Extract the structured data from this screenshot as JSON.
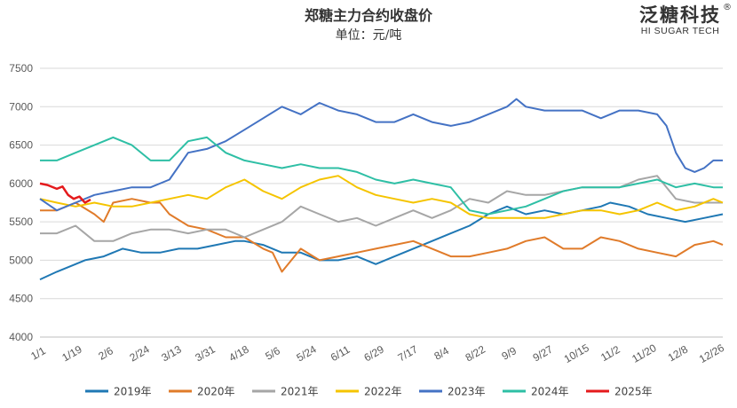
{
  "brand": {
    "name_cn": "泛糖科技",
    "name_en": "HI SUGAR TECH",
    "reg": "®"
  },
  "chart_data": {
    "type": "line",
    "title": "郑糖主力合约收盘价",
    "subtitle": "单位：元/吨",
    "xlabel": "",
    "ylabel": "",
    "ylim": [
      4000,
      7500
    ],
    "yticks": [
      4000,
      4500,
      5000,
      5500,
      6000,
      6500,
      7000,
      7500
    ],
    "xlim": [
      1,
      365
    ],
    "xticks": [
      {
        "label": "1/1",
        "day": 1
      },
      {
        "label": "1/19",
        "day": 19
      },
      {
        "label": "2/6",
        "day": 37
      },
      {
        "label": "2/24",
        "day": 55
      },
      {
        "label": "3/13",
        "day": 72
      },
      {
        "label": "3/31",
        "day": 90
      },
      {
        "label": "4/18",
        "day": 108
      },
      {
        "label": "5/6",
        "day": 126
      },
      {
        "label": "5/24",
        "day": 144
      },
      {
        "label": "6/11",
        "day": 162
      },
      {
        "label": "6/29",
        "day": 180
      },
      {
        "label": "7/17",
        "day": 198
      },
      {
        "label": "8/4",
        "day": 216
      },
      {
        "label": "8/22",
        "day": 234
      },
      {
        "label": "9/9",
        "day": 252
      },
      {
        "label": "9/27",
        "day": 270
      },
      {
        "label": "10/15",
        "day": 288
      },
      {
        "label": "11/2",
        "day": 306
      },
      {
        "label": "11/20",
        "day": 324
      },
      {
        "label": "12/8",
        "day": 342
      },
      {
        "label": "12/26",
        "day": 360
      }
    ],
    "grid": true,
    "legend": "bottom",
    "series": [
      {
        "name": "2019年",
        "color": "#1f78b4",
        "points": [
          [
            1,
            4750
          ],
          [
            10,
            4850
          ],
          [
            20,
            4950
          ],
          [
            25,
            5000
          ],
          [
            35,
            5050
          ],
          [
            45,
            5150
          ],
          [
            55,
            5100
          ],
          [
            65,
            5100
          ],
          [
            75,
            5150
          ],
          [
            85,
            5150
          ],
          [
            95,
            5200
          ],
          [
            105,
            5250
          ],
          [
            110,
            5250
          ],
          [
            120,
            5200
          ],
          [
            130,
            5100
          ],
          [
            140,
            5100
          ],
          [
            150,
            5000
          ],
          [
            160,
            5000
          ],
          [
            170,
            5050
          ],
          [
            180,
            4950
          ],
          [
            190,
            5050
          ],
          [
            200,
            5150
          ],
          [
            210,
            5250
          ],
          [
            220,
            5350
          ],
          [
            230,
            5450
          ],
          [
            240,
            5600
          ],
          [
            250,
            5700
          ],
          [
            260,
            5600
          ],
          [
            270,
            5650
          ],
          [
            280,
            5600
          ],
          [
            290,
            5650
          ],
          [
            300,
            5700
          ],
          [
            305,
            5750
          ],
          [
            315,
            5700
          ],
          [
            325,
            5600
          ],
          [
            335,
            5550
          ],
          [
            345,
            5500
          ],
          [
            355,
            5550
          ],
          [
            365,
            5600
          ]
        ]
      },
      {
        "name": "2020年",
        "color": "#e07b2a",
        "points": [
          [
            1,
            5650
          ],
          [
            10,
            5650
          ],
          [
            20,
            5750
          ],
          [
            30,
            5600
          ],
          [
            35,
            5500
          ],
          [
            40,
            5750
          ],
          [
            50,
            5800
          ],
          [
            60,
            5750
          ],
          [
            65,
            5750
          ],
          [
            70,
            5600
          ],
          [
            80,
            5450
          ],
          [
            90,
            5400
          ],
          [
            100,
            5300
          ],
          [
            110,
            5300
          ],
          [
            120,
            5150
          ],
          [
            125,
            5100
          ],
          [
            130,
            4850
          ],
          [
            135,
            5000
          ],
          [
            140,
            5150
          ],
          [
            150,
            5000
          ],
          [
            160,
            5050
          ],
          [
            170,
            5100
          ],
          [
            180,
            5150
          ],
          [
            190,
            5200
          ],
          [
            200,
            5250
          ],
          [
            210,
            5150
          ],
          [
            220,
            5050
          ],
          [
            230,
            5050
          ],
          [
            240,
            5100
          ],
          [
            250,
            5150
          ],
          [
            260,
            5250
          ],
          [
            270,
            5300
          ],
          [
            280,
            5150
          ],
          [
            290,
            5150
          ],
          [
            300,
            5300
          ],
          [
            310,
            5250
          ],
          [
            320,
            5150
          ],
          [
            330,
            5100
          ],
          [
            340,
            5050
          ],
          [
            350,
            5200
          ],
          [
            360,
            5250
          ],
          [
            365,
            5200
          ]
        ]
      },
      {
        "name": "2021年",
        "color": "#a6a6a6",
        "points": [
          [
            1,
            5350
          ],
          [
            10,
            5350
          ],
          [
            20,
            5450
          ],
          [
            30,
            5250
          ],
          [
            40,
            5250
          ],
          [
            50,
            5350
          ],
          [
            60,
            5400
          ],
          [
            70,
            5400
          ],
          [
            80,
            5350
          ],
          [
            90,
            5400
          ],
          [
            100,
            5400
          ],
          [
            110,
            5300
          ],
          [
            120,
            5400
          ],
          [
            130,
            5500
          ],
          [
            140,
            5700
          ],
          [
            150,
            5600
          ],
          [
            160,
            5500
          ],
          [
            170,
            5550
          ],
          [
            180,
            5450
          ],
          [
            190,
            5550
          ],
          [
            200,
            5650
          ],
          [
            210,
            5550
          ],
          [
            220,
            5650
          ],
          [
            230,
            5800
          ],
          [
            240,
            5750
          ],
          [
            250,
            5900
          ],
          [
            260,
            5850
          ],
          [
            270,
            5850
          ],
          [
            280,
            5900
          ],
          [
            290,
            5950
          ],
          [
            300,
            5950
          ],
          [
            310,
            5950
          ],
          [
            320,
            6050
          ],
          [
            330,
            6100
          ],
          [
            340,
            5800
          ],
          [
            350,
            5750
          ],
          [
            360,
            5750
          ],
          [
            365,
            5750
          ]
        ]
      },
      {
        "name": "2022年",
        "color": "#f5c400",
        "points": [
          [
            1,
            5800
          ],
          [
            10,
            5750
          ],
          [
            20,
            5700
          ],
          [
            30,
            5750
          ],
          [
            40,
            5700
          ],
          [
            50,
            5700
          ],
          [
            60,
            5750
          ],
          [
            70,
            5800
          ],
          [
            80,
            5850
          ],
          [
            90,
            5800
          ],
          [
            100,
            5950
          ],
          [
            110,
            6050
          ],
          [
            120,
            5900
          ],
          [
            130,
            5800
          ],
          [
            140,
            5950
          ],
          [
            150,
            6050
          ],
          [
            160,
            6100
          ],
          [
            170,
            5950
          ],
          [
            180,
            5850
          ],
          [
            190,
            5800
          ],
          [
            200,
            5750
          ],
          [
            210,
            5800
          ],
          [
            220,
            5750
          ],
          [
            230,
            5600
          ],
          [
            240,
            5550
          ],
          [
            250,
            5550
          ],
          [
            260,
            5550
          ],
          [
            270,
            5550
          ],
          [
            280,
            5600
          ],
          [
            290,
            5650
          ],
          [
            300,
            5650
          ],
          [
            310,
            5600
          ],
          [
            320,
            5650
          ],
          [
            330,
            5750
          ],
          [
            340,
            5650
          ],
          [
            350,
            5700
          ],
          [
            360,
            5800
          ],
          [
            365,
            5750
          ]
        ]
      },
      {
        "name": "2023年",
        "color": "#4472c4",
        "points": [
          [
            1,
            5800
          ],
          [
            10,
            5650
          ],
          [
            20,
            5750
          ],
          [
            30,
            5850
          ],
          [
            40,
            5900
          ],
          [
            50,
            5950
          ],
          [
            60,
            5950
          ],
          [
            70,
            6050
          ],
          [
            80,
            6400
          ],
          [
            90,
            6450
          ],
          [
            100,
            6550
          ],
          [
            110,
            6700
          ],
          [
            120,
            6850
          ],
          [
            130,
            7000
          ],
          [
            140,
            6900
          ],
          [
            150,
            7050
          ],
          [
            160,
            6950
          ],
          [
            170,
            6900
          ],
          [
            180,
            6800
          ],
          [
            190,
            6800
          ],
          [
            200,
            6900
          ],
          [
            210,
            6800
          ],
          [
            220,
            6750
          ],
          [
            230,
            6800
          ],
          [
            240,
            6900
          ],
          [
            250,
            7000
          ],
          [
            255,
            7100
          ],
          [
            260,
            7000
          ],
          [
            270,
            6950
          ],
          [
            280,
            6950
          ],
          [
            290,
            6950
          ],
          [
            300,
            6850
          ],
          [
            310,
            6950
          ],
          [
            320,
            6950
          ],
          [
            330,
            6900
          ],
          [
            335,
            6750
          ],
          [
            340,
            6400
          ],
          [
            345,
            6200
          ],
          [
            350,
            6150
          ],
          [
            355,
            6200
          ],
          [
            360,
            6300
          ],
          [
            365,
            6300
          ]
        ]
      },
      {
        "name": "2024年",
        "color": "#2ebfa5",
        "points": [
          [
            1,
            6300
          ],
          [
            10,
            6300
          ],
          [
            20,
            6400
          ],
          [
            30,
            6500
          ],
          [
            40,
            6600
          ],
          [
            50,
            6500
          ],
          [
            60,
            6300
          ],
          [
            70,
            6300
          ],
          [
            80,
            6550
          ],
          [
            90,
            6600
          ],
          [
            100,
            6400
          ],
          [
            110,
            6300
          ],
          [
            120,
            6250
          ],
          [
            130,
            6200
          ],
          [
            140,
            6250
          ],
          [
            150,
            6200
          ],
          [
            160,
            6200
          ],
          [
            170,
            6150
          ],
          [
            180,
            6050
          ],
          [
            190,
            6000
          ],
          [
            200,
            6050
          ],
          [
            210,
            6000
          ],
          [
            220,
            5950
          ],
          [
            230,
            5650
          ],
          [
            240,
            5600
          ],
          [
            250,
            5650
          ],
          [
            260,
            5700
          ],
          [
            270,
            5800
          ],
          [
            280,
            5900
          ],
          [
            290,
            5950
          ],
          [
            300,
            5950
          ],
          [
            310,
            5950
          ],
          [
            320,
            6000
          ],
          [
            330,
            6050
          ],
          [
            340,
            5950
          ],
          [
            350,
            6000
          ],
          [
            360,
            5950
          ],
          [
            365,
            5950
          ]
        ]
      },
      {
        "name": "2025年",
        "color": "#e41a1c",
        "points": [
          [
            1,
            6000
          ],
          [
            5,
            5980
          ],
          [
            10,
            5930
          ],
          [
            13,
            5960
          ],
          [
            16,
            5850
          ],
          [
            19,
            5800
          ],
          [
            22,
            5830
          ],
          [
            25,
            5750
          ],
          [
            28,
            5790
          ]
        ]
      }
    ]
  }
}
